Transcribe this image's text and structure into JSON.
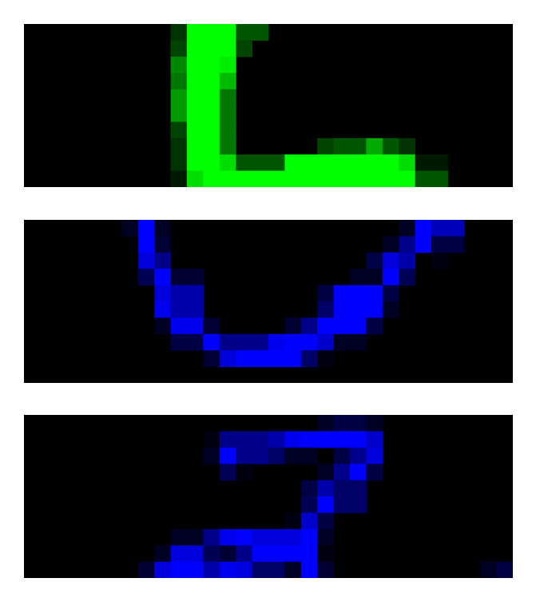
{
  "colors": {
    "page_background": "#ffffff",
    "panel_background": "#000000",
    "green_bright": "#00ff00",
    "blue_bright": "#0000ff"
  },
  "panels": [
    {
      "shape": "L-shaped handwritten stroke",
      "color_channel": "green",
      "grid": {
        "cols": 30,
        "rows": 10
      },
      "cells": [
        [
          9,
          0,
          "#003300"
        ],
        [
          10,
          0,
          "#00ff00"
        ],
        [
          11,
          0,
          "#00ff00"
        ],
        [
          12,
          0,
          "#00ff00"
        ],
        [
          13,
          0,
          "#005500"
        ],
        [
          14,
          0,
          "#005500"
        ],
        [
          9,
          1,
          "#004400"
        ],
        [
          10,
          1,
          "#00ff00"
        ],
        [
          11,
          1,
          "#00ff00"
        ],
        [
          12,
          1,
          "#00ff00"
        ],
        [
          13,
          1,
          "#004400"
        ],
        [
          9,
          2,
          "#008800"
        ],
        [
          10,
          2,
          "#00ff00"
        ],
        [
          11,
          2,
          "#00ff00"
        ],
        [
          12,
          2,
          "#00ee00"
        ],
        [
          9,
          3,
          "#007700"
        ],
        [
          10,
          3,
          "#00ff00"
        ],
        [
          11,
          3,
          "#00ff00"
        ],
        [
          12,
          3,
          "#00bb00"
        ],
        [
          9,
          4,
          "#009900"
        ],
        [
          10,
          4,
          "#00ff00"
        ],
        [
          11,
          4,
          "#00ff00"
        ],
        [
          12,
          4,
          "#007700"
        ],
        [
          9,
          5,
          "#009900"
        ],
        [
          10,
          5,
          "#00ff00"
        ],
        [
          11,
          5,
          "#00ff00"
        ],
        [
          12,
          5,
          "#007700"
        ],
        [
          9,
          6,
          "#004400"
        ],
        [
          10,
          6,
          "#00ff00"
        ],
        [
          11,
          6,
          "#00ff00"
        ],
        [
          12,
          6,
          "#007700"
        ],
        [
          9,
          7,
          "#003300"
        ],
        [
          10,
          7,
          "#00ff00"
        ],
        [
          11,
          7,
          "#00ff00"
        ],
        [
          12,
          7,
          "#007700"
        ],
        [
          18,
          7,
          "#004400"
        ],
        [
          19,
          7,
          "#005500"
        ],
        [
          20,
          7,
          "#005500"
        ],
        [
          21,
          7,
          "#00aa00"
        ],
        [
          22,
          7,
          "#005500"
        ],
        [
          23,
          7,
          "#003300"
        ],
        [
          9,
          8,
          "#003300"
        ],
        [
          10,
          8,
          "#00ff00"
        ],
        [
          11,
          8,
          "#00ff00"
        ],
        [
          12,
          8,
          "#00dd00"
        ],
        [
          13,
          8,
          "#005500"
        ],
        [
          14,
          8,
          "#005500"
        ],
        [
          15,
          8,
          "#005500"
        ],
        [
          16,
          8,
          "#00ff00"
        ],
        [
          17,
          8,
          "#00ff00"
        ],
        [
          18,
          8,
          "#00ff00"
        ],
        [
          19,
          8,
          "#00ff00"
        ],
        [
          20,
          8,
          "#00ff00"
        ],
        [
          21,
          8,
          "#00ff00"
        ],
        [
          22,
          8,
          "#00ff00"
        ],
        [
          23,
          8,
          "#00dd00"
        ],
        [
          24,
          8,
          "#001a00"
        ],
        [
          25,
          8,
          "#001a00"
        ],
        [
          9,
          9,
          "#001a00"
        ],
        [
          10,
          9,
          "#00dd00"
        ],
        [
          11,
          9,
          "#00ff00"
        ],
        [
          12,
          9,
          "#00ff00"
        ],
        [
          13,
          9,
          "#00ff00"
        ],
        [
          14,
          9,
          "#00ff00"
        ],
        [
          15,
          9,
          "#00ff00"
        ],
        [
          16,
          9,
          "#00ff00"
        ],
        [
          17,
          9,
          "#00ff00"
        ],
        [
          18,
          9,
          "#00ff00"
        ],
        [
          19,
          9,
          "#00ff00"
        ],
        [
          20,
          9,
          "#00ff00"
        ],
        [
          21,
          9,
          "#00ff00"
        ],
        [
          22,
          9,
          "#00ff00"
        ],
        [
          23,
          9,
          "#00ff00"
        ],
        [
          24,
          9,
          "#005500"
        ],
        [
          25,
          9,
          "#005500"
        ]
      ]
    },
    {
      "shape": "U-shaped handwritten stroke",
      "color_channel": "blue",
      "grid": {
        "cols": 30,
        "rows": 10
      },
      "cells": [
        [
          6,
          0,
          "#000022"
        ],
        [
          7,
          0,
          "#0000ff"
        ],
        [
          8,
          0,
          "#000022"
        ],
        [
          23,
          0,
          "#000022"
        ],
        [
          24,
          0,
          "#0000ff"
        ],
        [
          25,
          0,
          "#0000bb"
        ],
        [
          26,
          0,
          "#0000bb"
        ],
        [
          7,
          1,
          "#0000ff"
        ],
        [
          8,
          1,
          "#000033"
        ],
        [
          22,
          1,
          "#000022"
        ],
        [
          23,
          1,
          "#000088"
        ],
        [
          24,
          1,
          "#0000ff"
        ],
        [
          25,
          1,
          "#000044"
        ],
        [
          26,
          1,
          "#000044"
        ],
        [
          7,
          2,
          "#0000dd"
        ],
        [
          8,
          2,
          "#000088"
        ],
        [
          21,
          2,
          "#000044"
        ],
        [
          22,
          2,
          "#0000dd"
        ],
        [
          23,
          2,
          "#0000aa"
        ],
        [
          25,
          2,
          "#000011"
        ],
        [
          7,
          3,
          "#000055"
        ],
        [
          8,
          3,
          "#0000ff"
        ],
        [
          9,
          3,
          "#000033"
        ],
        [
          10,
          3,
          "#000033"
        ],
        [
          20,
          3,
          "#000022"
        ],
        [
          21,
          3,
          "#000022"
        ],
        [
          22,
          3,
          "#0000ff"
        ],
        [
          23,
          3,
          "#000055"
        ],
        [
          8,
          4,
          "#0000dd"
        ],
        [
          9,
          4,
          "#0000aa"
        ],
        [
          10,
          4,
          "#0000aa"
        ],
        [
          18,
          4,
          "#000044"
        ],
        [
          19,
          4,
          "#0000ff"
        ],
        [
          20,
          4,
          "#0000ff"
        ],
        [
          21,
          4,
          "#0000ff"
        ],
        [
          22,
          4,
          "#000044"
        ],
        [
          8,
          5,
          "#0000ee"
        ],
        [
          9,
          5,
          "#0000aa"
        ],
        [
          10,
          5,
          "#0000aa"
        ],
        [
          18,
          5,
          "#000066"
        ],
        [
          19,
          5,
          "#0000ff"
        ],
        [
          20,
          5,
          "#0000ff"
        ],
        [
          21,
          5,
          "#0000ff"
        ],
        [
          22,
          5,
          "#000022"
        ],
        [
          8,
          6,
          "#000022"
        ],
        [
          9,
          6,
          "#0000ee"
        ],
        [
          10,
          6,
          "#0000ee"
        ],
        [
          11,
          6,
          "#000033"
        ],
        [
          16,
          6,
          "#000033"
        ],
        [
          17,
          6,
          "#000088"
        ],
        [
          18,
          6,
          "#0000ff"
        ],
        [
          19,
          6,
          "#0000ff"
        ],
        [
          20,
          6,
          "#0000ff"
        ],
        [
          21,
          6,
          "#000044"
        ],
        [
          9,
          7,
          "#000044"
        ],
        [
          10,
          7,
          "#000044"
        ],
        [
          11,
          7,
          "#0000ff"
        ],
        [
          12,
          7,
          "#000088"
        ],
        [
          13,
          7,
          "#000088"
        ],
        [
          14,
          7,
          "#000088"
        ],
        [
          15,
          7,
          "#0000ee"
        ],
        [
          16,
          7,
          "#0000ff"
        ],
        [
          17,
          7,
          "#0000ff"
        ],
        [
          18,
          7,
          "#0000cc"
        ],
        [
          19,
          7,
          "#000022"
        ],
        [
          20,
          7,
          "#000022"
        ],
        [
          11,
          8,
          "#000033"
        ],
        [
          12,
          8,
          "#0000dd"
        ],
        [
          13,
          8,
          "#0000ff"
        ],
        [
          14,
          8,
          "#0000ff"
        ],
        [
          15,
          8,
          "#0000ff"
        ],
        [
          16,
          8,
          "#0000ff"
        ],
        [
          17,
          8,
          "#000066"
        ],
        [
          18,
          8,
          "#000011"
        ]
      ]
    },
    {
      "shape": "Z-shaped handwritten stroke",
      "color_channel": "blue",
      "grid": {
        "cols": 30,
        "rows": 10
      },
      "cells": [
        [
          18,
          0,
          "#000022"
        ],
        [
          19,
          0,
          "#000044"
        ],
        [
          20,
          0,
          "#000044"
        ],
        [
          21,
          0,
          "#000022"
        ],
        [
          11,
          1,
          "#000011"
        ],
        [
          12,
          1,
          "#000088"
        ],
        [
          13,
          1,
          "#000088"
        ],
        [
          14,
          1,
          "#000088"
        ],
        [
          15,
          1,
          "#0000aa"
        ],
        [
          16,
          1,
          "#0000ee"
        ],
        [
          17,
          1,
          "#0000ff"
        ],
        [
          18,
          1,
          "#0000ff"
        ],
        [
          19,
          1,
          "#0000ff"
        ],
        [
          20,
          1,
          "#0000ff"
        ],
        [
          21,
          1,
          "#0000cc"
        ],
        [
          11,
          2,
          "#000022"
        ],
        [
          12,
          2,
          "#0000ff"
        ],
        [
          13,
          2,
          "#000088"
        ],
        [
          14,
          2,
          "#000088"
        ],
        [
          15,
          2,
          "#000066"
        ],
        [
          16,
          2,
          "#000022"
        ],
        [
          17,
          2,
          "#000022"
        ],
        [
          19,
          2,
          "#000044"
        ],
        [
          20,
          2,
          "#000088"
        ],
        [
          21,
          2,
          "#0000dd"
        ],
        [
          12,
          3,
          "#000055"
        ],
        [
          13,
          3,
          "#000011"
        ],
        [
          18,
          3,
          "#000022"
        ],
        [
          19,
          3,
          "#000088"
        ],
        [
          20,
          3,
          "#0000ff"
        ],
        [
          21,
          3,
          "#000044"
        ],
        [
          17,
          4,
          "#000044"
        ],
        [
          18,
          4,
          "#0000aa"
        ],
        [
          19,
          4,
          "#000066"
        ],
        [
          20,
          4,
          "#000066"
        ],
        [
          17,
          5,
          "#000055"
        ],
        [
          18,
          5,
          "#0000ff"
        ],
        [
          19,
          5,
          "#000066"
        ],
        [
          20,
          5,
          "#000066"
        ],
        [
          16,
          6,
          "#000011"
        ],
        [
          17,
          6,
          "#0000cc"
        ],
        [
          18,
          6,
          "#000044"
        ],
        [
          9,
          7,
          "#000022"
        ],
        [
          10,
          7,
          "#000022"
        ],
        [
          11,
          7,
          "#000088"
        ],
        [
          12,
          7,
          "#0000ee"
        ],
        [
          13,
          7,
          "#0000ff"
        ],
        [
          14,
          7,
          "#0000dd"
        ],
        [
          15,
          7,
          "#0000dd"
        ],
        [
          16,
          7,
          "#0000dd"
        ],
        [
          17,
          7,
          "#0000ff"
        ],
        [
          18,
          7,
          "#000022"
        ],
        [
          8,
          8,
          "#000022"
        ],
        [
          9,
          8,
          "#0000dd"
        ],
        [
          10,
          8,
          "#0000dd"
        ],
        [
          11,
          8,
          "#000055"
        ],
        [
          12,
          8,
          "#000033"
        ],
        [
          13,
          8,
          "#000088"
        ],
        [
          14,
          8,
          "#0000ff"
        ],
        [
          15,
          8,
          "#0000ff"
        ],
        [
          16,
          8,
          "#0000ff"
        ],
        [
          17,
          8,
          "#0000ff"
        ],
        [
          18,
          8,
          "#000011"
        ],
        [
          7,
          9,
          "#000033"
        ],
        [
          8,
          9,
          "#0000dd"
        ],
        [
          9,
          9,
          "#0000ff"
        ],
        [
          10,
          9,
          "#0000ff"
        ],
        [
          11,
          9,
          "#0000aa"
        ],
        [
          12,
          9,
          "#0000ee"
        ],
        [
          13,
          9,
          "#0000dd"
        ],
        [
          14,
          9,
          "#000066"
        ],
        [
          15,
          9,
          "#000066"
        ],
        [
          16,
          9,
          "#000022"
        ],
        [
          17,
          9,
          "#0000ff"
        ],
        [
          18,
          9,
          "#000033"
        ],
        [
          28,
          9,
          "#000022"
        ],
        [
          29,
          9,
          "#000044"
        ]
      ]
    }
  ]
}
